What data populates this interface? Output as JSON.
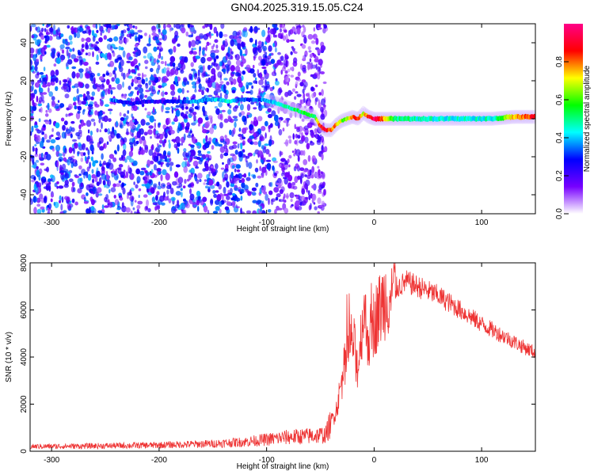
{
  "title": "GN04.2025.319.15.05.C24",
  "chart_data": [
    {
      "type": "heatmap",
      "name": "spectrogram",
      "xlabel": "Height of straight line (km)",
      "ylabel": "Frequency (Hz)",
      "xlim": [
        -320,
        150
      ],
      "ylim": [
        -50,
        50
      ],
      "xticks": [
        -300,
        -200,
        -100,
        0,
        100
      ],
      "yticks": [
        -40,
        -20,
        0,
        20,
        40
      ],
      "noise_until_km": -50,
      "ridge": {
        "x": [
          -245,
          -235,
          -225,
          -215,
          -205,
          -195,
          -185,
          -175,
          -165,
          -155,
          -145,
          -135,
          -125,
          -115,
          -105,
          -95,
          -85,
          -75,
          -65,
          -55,
          -50,
          -45,
          -40,
          -35,
          -30,
          -25,
          -20,
          -15,
          -10,
          -5,
          0,
          5,
          20,
          50,
          80,
          110,
          130,
          150
        ],
        "y": [
          10,
          9,
          8,
          9,
          9,
          9,
          9,
          9,
          9,
          10,
          10,
          9,
          10,
          10,
          10,
          9,
          7,
          5,
          3,
          1,
          -4,
          -6,
          -6,
          -3,
          -1,
          0,
          1,
          0,
          3,
          1,
          0,
          0,
          0,
          0,
          0,
          0,
          1,
          1
        ],
        "amp": [
          0.35,
          0.3,
          0.25,
          0.25,
          0.25,
          0.25,
          0.3,
          0.35,
          0.4,
          0.35,
          0.4,
          0.45,
          0.35,
          0.3,
          0.35,
          0.4,
          0.45,
          0.5,
          0.55,
          0.55,
          0.85,
          0.9,
          0.8,
          0.75,
          0.65,
          0.6,
          0.8,
          0.85,
          0.7,
          0.85,
          0.95,
          0.9,
          0.5,
          0.45,
          0.45,
          0.45,
          0.75,
          0.85
        ]
      }
    },
    {
      "type": "line",
      "name": "snr",
      "xlabel": "Height of straight line (km)",
      "ylabel": "SNR (10 * v/v)",
      "xlim": [
        -320,
        150
      ],
      "ylim": [
        0,
        8000
      ],
      "xticks": [
        -300,
        -200,
        -100,
        0,
        100
      ],
      "yticks": [
        0,
        2000,
        4000,
        6000,
        8000
      ],
      "color": "#ee3333",
      "envelope": {
        "x": [
          -320,
          -250,
          -200,
          -150,
          -120,
          -100,
          -80,
          -60,
          -45,
          -35,
          -30,
          -25,
          -20,
          -15,
          -10,
          -5,
          0,
          10,
          20,
          30,
          40,
          60,
          80,
          100,
          120,
          140,
          150
        ],
        "y": [
          200,
          230,
          260,
          320,
          400,
          500,
          600,
          650,
          700,
          1800,
          3000,
          4200,
          4800,
          3500,
          6000,
          4700,
          5500,
          6500,
          6900,
          7200,
          7000,
          6600,
          6000,
          5400,
          4900,
          4400,
          4200
        ]
      }
    }
  ],
  "colorbar": {
    "label": "Normalized spectral amplitude",
    "ticks": [
      "0.0",
      "0.2",
      "0.4",
      "0.6",
      "0.8"
    ],
    "stops": [
      "#ffffff",
      "#7700ff",
      "#0000ff",
      "#00ffff",
      "#00ff00",
      "#ffff00",
      "#ff0000",
      "#ff0088"
    ]
  }
}
